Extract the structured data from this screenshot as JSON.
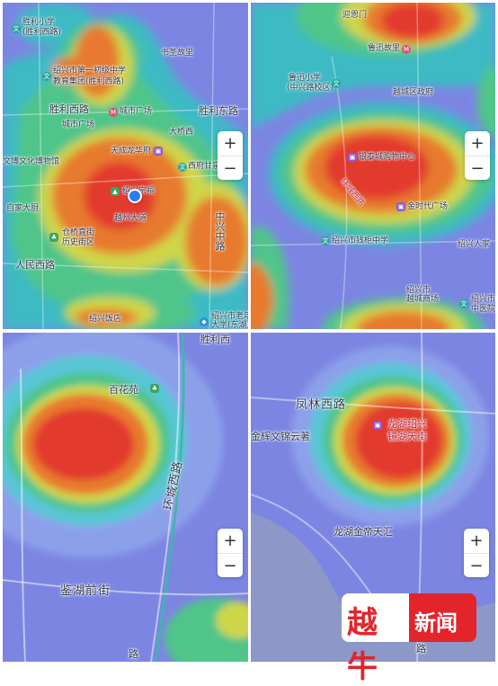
{
  "panel1": {
    "labels": {
      "l1": "胜利小学",
      "l2": "(胜利西路)",
      "l3": "绍兴市第一初级中学",
      "l4": "教育集团(胜利西路)",
      "l5": "城市广场",
      "l6": "胜利西路",
      "l7": "城市广场",
      "l8": "天成龙华府",
      "l9": "文博文化博物馆",
      "l10": "西府甘泉",
      "l11": "绍兴宗祠",
      "l12": "越州大道",
      "l13": "人民西路",
      "l14": "中兴中路",
      "l15": "大桥西",
      "l16": "胜利东路",
      "l17": "书圣故里",
      "l18": "仓桥直街",
      "l19": "历史街区",
      "l20": "绍兴饭店",
      "l21": "绍兴市老年",
      "l22": "大学(东湖)",
      "l23": "自家大厨"
    },
    "zoom": {
      "plus": "+",
      "minus": "−"
    }
  },
  "panel2": {
    "labels": {
      "l1": "迎恩门",
      "l2": "鲁迅故里",
      "l3": "鲁迅小学",
      "l4": "(中兴路校区)",
      "l5": "越城区政府",
      "l6": "银泰城购物中心",
      "l7": "环城西路",
      "l8": "金时代广场",
      "l9": "绍兴市钱柜中学",
      "l10": "绍兴人家",
      "l11": "绍兴市",
      "l12": "越城商场",
      "l13": "绍兴市第",
      "l14": "中医院"
    },
    "zoom": {
      "plus": "+",
      "minus": "−"
    }
  },
  "panel3": {
    "labels": {
      "l1": "胜利西",
      "l2": "百花苑",
      "l3": "环城西路",
      "l4": "鉴湖前街",
      "l5": "路"
    },
    "zoom": {
      "plus": "+",
      "minus": "−"
    }
  },
  "panel4": {
    "labels": {
      "l1": "凤林西路",
      "l2": "龙湖绍兴",
      "l3": "镜湖天街",
      "l4": "金辉文锦云著",
      "l5": "龙湖金帝天汇",
      "l6": "路"
    },
    "zoom": {
      "plus": "+",
      "minus": "−"
    }
  },
  "logo": {
    "left": "越牛",
    "right": "新闻"
  },
  "colors": {
    "hot_red": "#e23a2e",
    "orange": "#e8762f",
    "yellow_green": "#c8d64a",
    "green": "#48c38a",
    "cyan": "#3ab9c6",
    "blue": "#6a86e6",
    "purple": "#7f7ce0",
    "brand_red": "#e3242b"
  }
}
